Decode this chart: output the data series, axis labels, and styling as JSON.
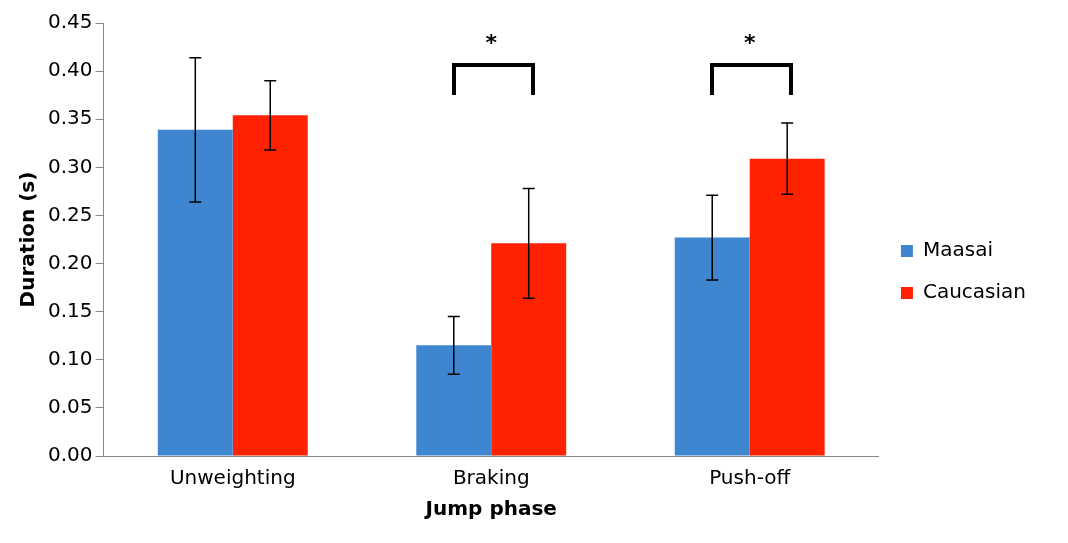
{
  "chart_data": {
    "type": "bar",
    "xlabel": "Jump phase",
    "ylabel": "Duration (s)",
    "categories": [
      "Unweighting",
      "Braking",
      "Push-off"
    ],
    "series": [
      {
        "name": "Maasai",
        "color": "#3f86d0",
        "values": [
          0.339,
          0.115,
          0.227
        ],
        "errors": [
          0.075,
          0.03,
          0.044
        ]
      },
      {
        "name": "Caucasian",
        "color": "#ff2200",
        "values": [
          0.354,
          0.221,
          0.309
        ],
        "errors": [
          0.036,
          0.057,
          0.037
        ]
      }
    ],
    "ylim": [
      0,
      0.45
    ],
    "yticks": [
      {
        "value": 0,
        "label": "0.00"
      },
      {
        "value": 0.05,
        "label": "0.05"
      },
      {
        "value": 0.1,
        "label": "0.10"
      },
      {
        "value": 0.15,
        "label": "0.15"
      },
      {
        "value": 0.2,
        "label": "0.20"
      },
      {
        "value": 0.25,
        "label": "0.25"
      },
      {
        "value": 0.3,
        "label": "0.30"
      },
      {
        "value": 0.35,
        "label": "0.35"
      },
      {
        "value": 0.4,
        "label": "0.40"
      },
      {
        "value": 0.45,
        "label": "0.45"
      }
    ],
    "annotations": [
      "*",
      "*"
    ],
    "grid": false,
    "legend": "right"
  }
}
